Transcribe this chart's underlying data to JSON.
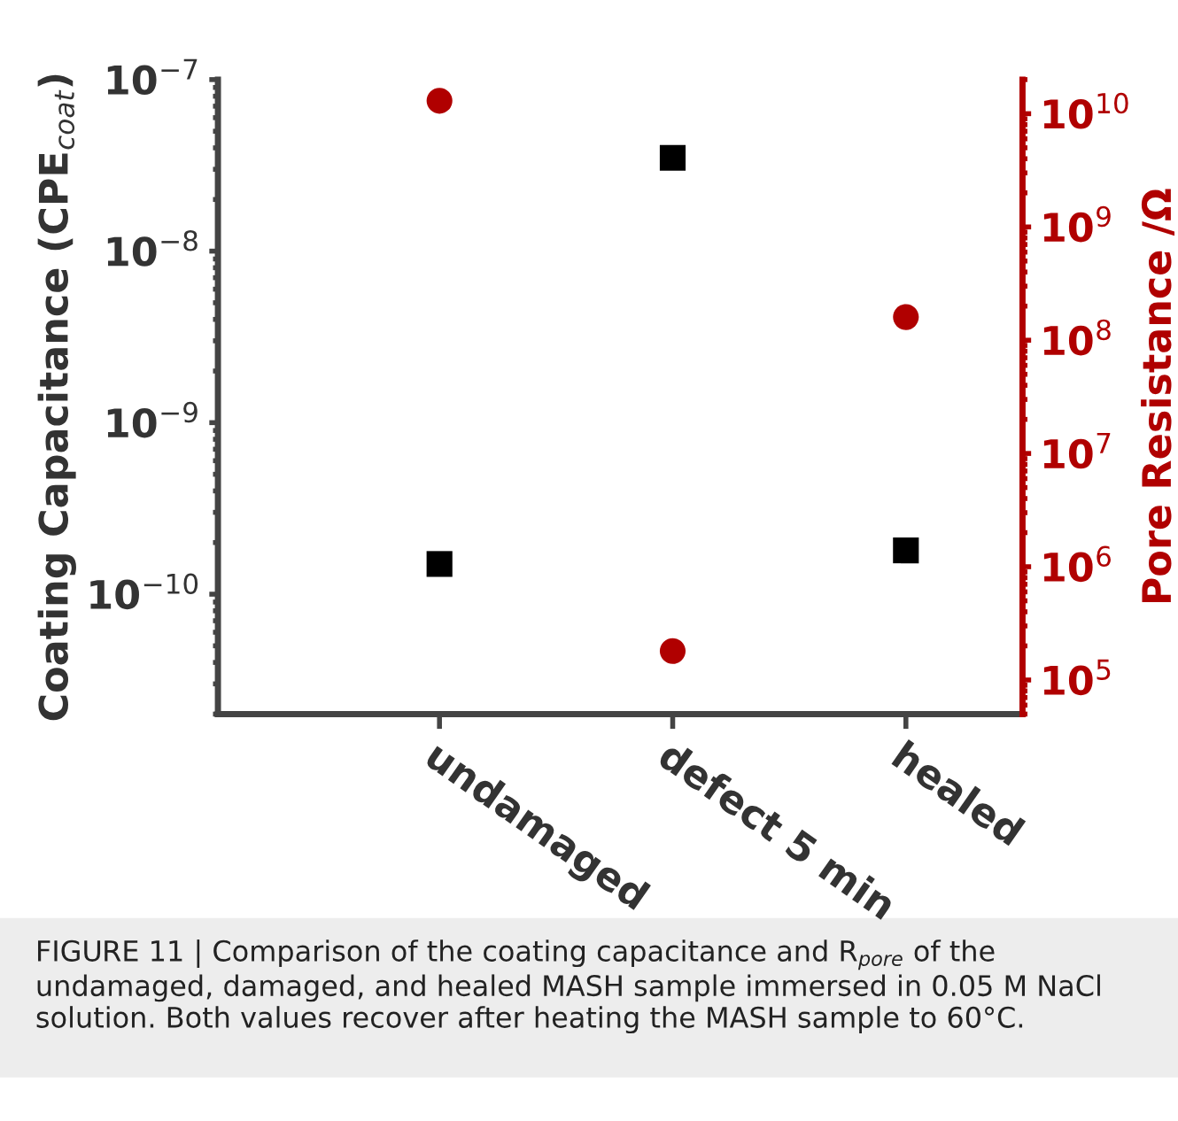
{
  "chart_data": [
    {
      "type": "scatter",
      "categories": [
        "undamaged",
        "defect 5 min",
        "healed"
      ],
      "ylabel": "Coating Capacitance (CPE$_{coat}$)",
      "log": "y",
      "ylim": [
        2e-11,
        1e-07
      ],
      "yticks": [
        {
          "value": 1e-10,
          "label": "10$^{−10}$"
        },
        {
          "value": 1e-09,
          "label": "10$^{−9}$"
        },
        {
          "value": 1e-08,
          "label": "10$^{−8}$"
        },
        {
          "value": 1e-07,
          "label": "10$^{−7}$"
        }
      ],
      "series": [
        {
          "color": "#000000",
          "marker": "square",
          "values": [
            1.5e-10,
            3.5e-08,
            1.8e-10
          ]
        }
      ],
      "annotations": [
        "FIGURE 11 | Comparison of the coating capacitance and R$_{pore}$ of the undamaged, damaged, and healed MASH sample immersed in 0.05 M NaCl solution. Both values recover after heating the MASH sample to 60°C."
      ]
    },
    {
      "type": "scatter",
      "categories": [
        null,
        null,
        null
      ],
      "tick_labels": "y",
      "ylabel": "Pore Resistance /Ω",
      "log": "y",
      "ylim": [
        50000.0,
        20000000000.0
      ],
      "yticks": [
        {
          "value": 100000.0,
          "label": "10$^{5}$"
        },
        {
          "value": 1000000.0,
          "label": "10$^{6}$"
        },
        {
          "value": 10000000.0,
          "label": "10$^{7}$"
        },
        {
          "value": 100000000.0,
          "label": "10$^{8}$"
        },
        {
          "value": 1000000000.0,
          "label": "10$^{9}$"
        },
        {
          "value": 10000000000.0,
          "label": "10$^{10}$"
        }
      ],
      "series": [
        {
          "color": "#b00000",
          "marker": "circle",
          "values": [
            13000000000.0,
            180000.0,
            160000000.0
          ]
        }
      ]
    }
  ]
}
